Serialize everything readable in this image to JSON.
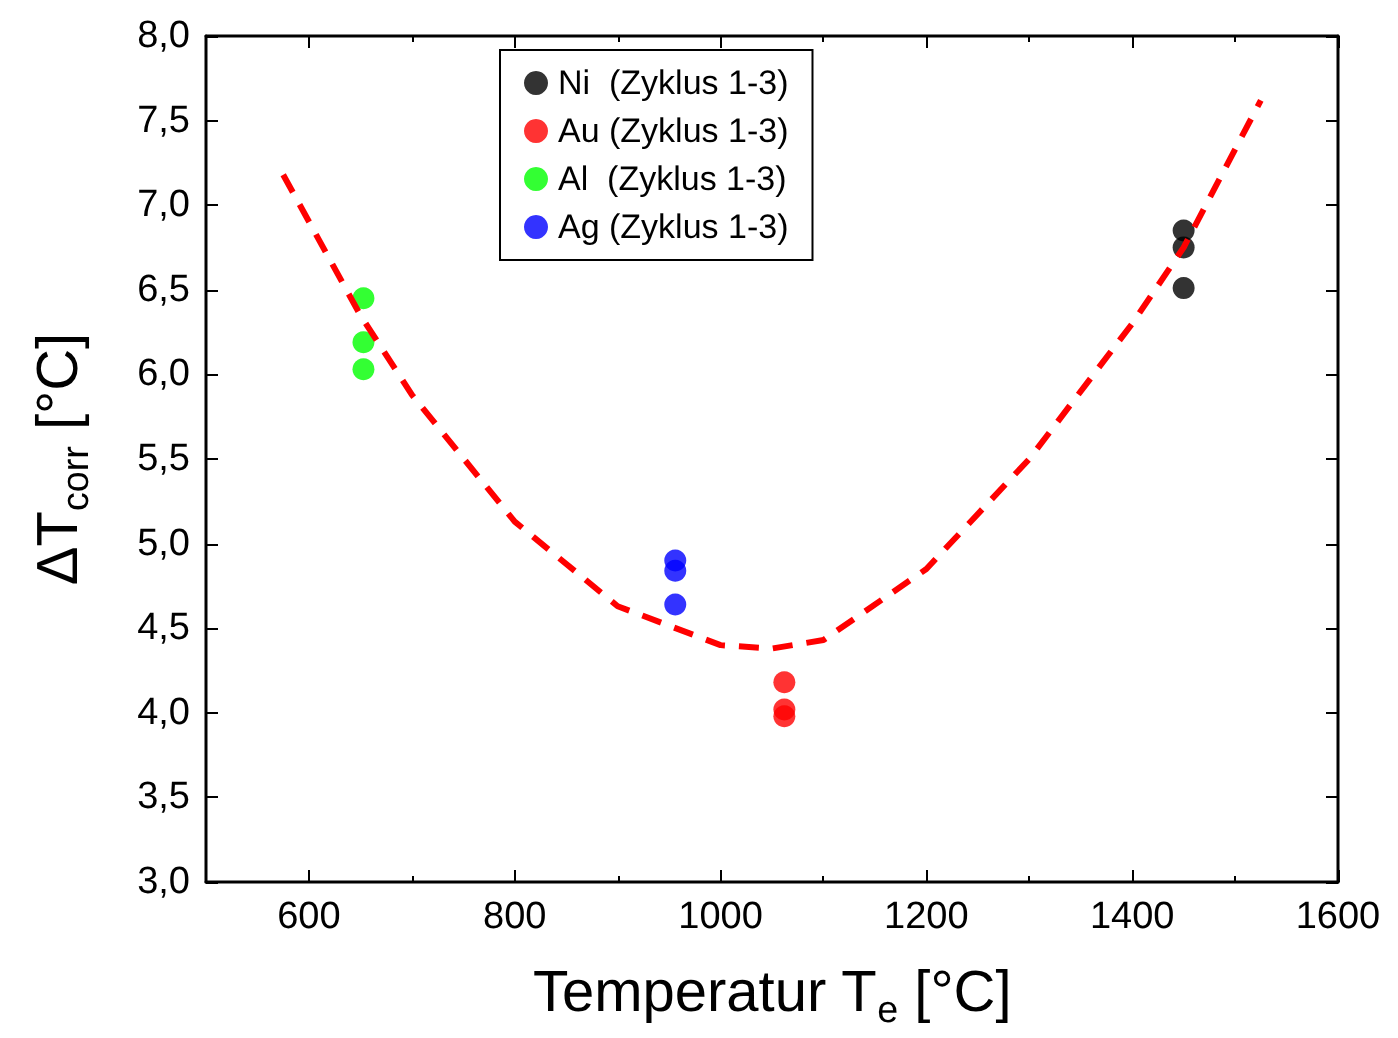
{
  "chart_data": {
    "type": "scatter",
    "xlabel": "Temperatur T$_{e}$ [°C]",
    "ylabel": "ΔT$_{corr}$ [°C]",
    "xlim": [
      500,
      1600
    ],
    "xticks": [
      600,
      800,
      1000,
      1200,
      1400,
      1600
    ],
    "ylim": [
      3,
      8
    ],
    "yticks": [
      {
        "value": 3,
        "label": "3,0"
      },
      {
        "value": 3.5,
        "label": "3,5"
      },
      {
        "value": 4,
        "label": "4,0"
      },
      {
        "value": 4.5,
        "label": "4,5"
      },
      {
        "value": 5,
        "label": "5,0"
      },
      {
        "value": 5.5,
        "label": "5,5"
      },
      {
        "value": 6,
        "label": "6,0"
      },
      {
        "value": 6.5,
        "label": "6,5"
      },
      {
        "value": 7,
        "label": "7,0"
      },
      {
        "value": 7.5,
        "label": "7,5"
      },
      {
        "value": 8,
        "label": "8,0"
      }
    ],
    "grid": false,
    "legend": "top",
    "marker": "circle",
    "series": [
      {
        "name": "Ni  (Zyklus 1-3)",
        "color": "#000000",
        "x": [
          1450,
          1450,
          1450
        ],
        "values": [
          6.85,
          6.75,
          6.51
        ]
      },
      {
        "name": "Au (Zyklus 1-3)",
        "color": "#ff0000",
        "x": [
          1062,
          1062,
          1062
        ],
        "values": [
          4.18,
          4.02,
          3.98
        ]
      },
      {
        "name": "Al  (Zyklus 1-3)",
        "color": "#00ff00",
        "x": [
          653,
          653,
          653
        ],
        "values": [
          6.45,
          6.19,
          6.03
        ]
      },
      {
        "name": "Ag (Zyklus 1-3)",
        "color": "#0000ff",
        "x": [
          956,
          956,
          956
        ],
        "values": [
          4.9,
          4.84,
          4.64
        ]
      },
      {
        "type": "line",
        "color": "#ff0000",
        "line_style": "dashed",
        "marker": "none",
        "x": [
          575,
          650,
          700,
          800,
          900,
          1000,
          1050,
          1100,
          1200,
          1300,
          1400,
          1450,
          1525
        ],
        "values": [
          7.18,
          6.35,
          5.88,
          5.13,
          4.63,
          4.4,
          4.38,
          4.43,
          4.85,
          5.5,
          6.3,
          6.75,
          7.62
        ]
      }
    ]
  }
}
